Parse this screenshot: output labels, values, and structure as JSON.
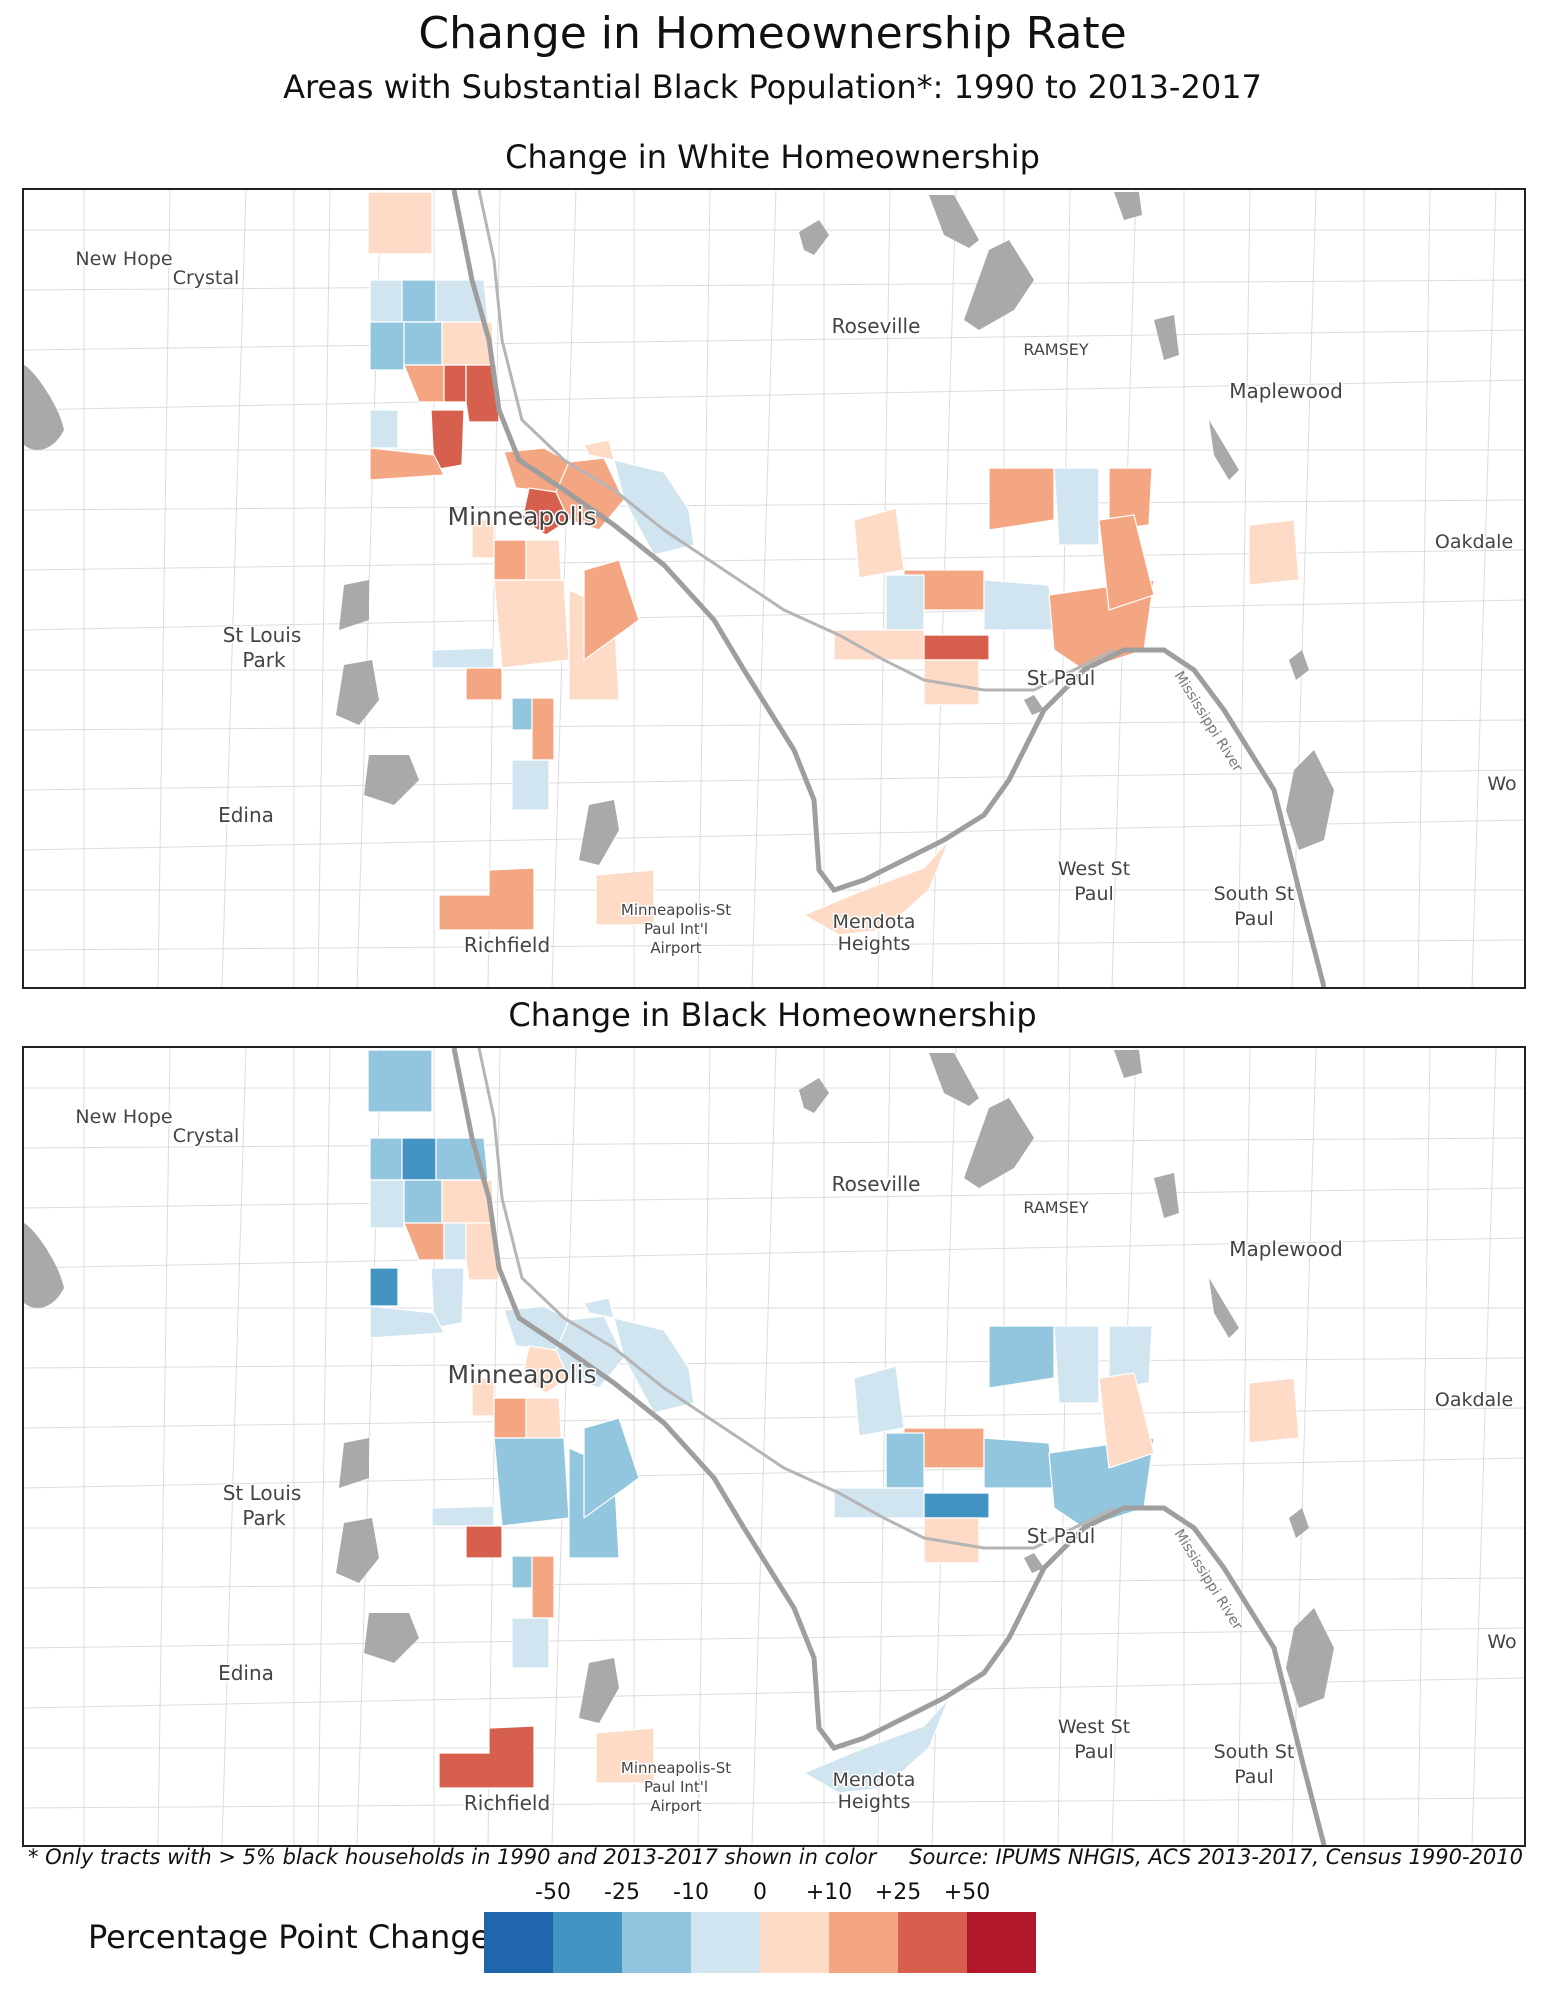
{
  "title": "Change in Homeownership Rate",
  "subtitle": "Areas with Substantial Black Population*: 1990 to 2013-2017",
  "panels": {
    "white": {
      "title": "Change in White Homeownership"
    },
    "black": {
      "title": "Change in Black Homeownership"
    }
  },
  "place_labels": {
    "new_hope": "New Hope",
    "crystal": "Crystal",
    "roseville": "Roseville",
    "ramsey": "RAMSEY",
    "maplewood": "Maplewood",
    "minneapolis": "Minneapolis",
    "oakdale": "Oakdale",
    "st_louis_park_1": "St Louis",
    "st_louis_park_2": "Park",
    "st_paul": "St Paul",
    "mississippi_river": "Mississippi River",
    "edina": "Edina",
    "west_st_paul_1": "West St",
    "west_st_paul_2": "Paul",
    "south_st_paul_1": "South St",
    "south_st_paul_2": "Paul",
    "mendota_1": "Mendota",
    "mendota_2": "Heights",
    "richfield": "Richfield",
    "airport_1": "Minneapolis-St",
    "airport_2": "Paul Int'l",
    "airport_3": "Airport",
    "woodbury_partial": "Wo"
  },
  "footnote": "* Only tracts with > 5% black households in 1990 and 2013-2017 shown in color",
  "source": "Source: IPUMS NHGIS, ACS 2013-2017, Census 1990-2010",
  "legend": {
    "title": "Percentage Point Change",
    "ticks": [
      "-50",
      "-25",
      "-10",
      "0",
      "+10",
      "+25",
      "+50"
    ],
    "colors": [
      "#2166ac",
      "#4393c3",
      "#92c5de",
      "#d1e5f0",
      "#fddbc7",
      "#f4a582",
      "#d6604d",
      "#b2182b"
    ]
  },
  "map_data": {
    "white": [
      {
        "area": "north-top",
        "cls": 4
      },
      {
        "area": "north-1",
        "cls": 3
      },
      {
        "area": "north-2",
        "cls": 2
      },
      {
        "area": "north-3",
        "cls": 3
      },
      {
        "area": "north-4",
        "cls": 2
      },
      {
        "area": "north-5",
        "cls": 2
      },
      {
        "area": "north-6",
        "cls": 4
      },
      {
        "area": "north-7",
        "cls": 5
      },
      {
        "area": "north-8",
        "cls": 6
      },
      {
        "area": "north-9",
        "cls": 6
      },
      {
        "area": "north-10",
        "cls": 3
      },
      {
        "area": "north-11",
        "cls": 6
      },
      {
        "area": "north-12",
        "cls": 5
      },
      {
        "area": "downtown-1",
        "cls": 5
      },
      {
        "area": "downtown-2",
        "cls": 6
      },
      {
        "area": "downtown-3",
        "cls": 5
      },
      {
        "area": "downtown-4",
        "cls": 3
      },
      {
        "area": "downtown-5",
        "cls": 4
      },
      {
        "area": "south-1",
        "cls": 4
      },
      {
        "area": "south-2",
        "cls": 5
      },
      {
        "area": "south-3",
        "cls": 4
      },
      {
        "area": "south-4",
        "cls": 3
      },
      {
        "area": "south-5",
        "cls": 5
      },
      {
        "area": "south-6",
        "cls": 2
      },
      {
        "area": "south-7",
        "cls": 5
      },
      {
        "area": "south-8",
        "cls": 4
      },
      {
        "area": "south-9",
        "cls": 3
      },
      {
        "area": "south-10",
        "cls": 4
      },
      {
        "area": "south-11",
        "cls": 5
      },
      {
        "area": "richfield-1",
        "cls": 5
      },
      {
        "area": "airport-1",
        "cls": 4
      },
      {
        "area": "mendota-1",
        "cls": 4
      },
      {
        "area": "stpaul-1",
        "cls": 4
      },
      {
        "area": "stpaul-2",
        "cls": 5
      },
      {
        "area": "stpaul-3",
        "cls": 3
      },
      {
        "area": "stpaul-4",
        "cls": 5
      },
      {
        "area": "stpaul-5",
        "cls": 4
      },
      {
        "area": "stpaul-6",
        "cls": 3
      },
      {
        "area": "stpaul-7",
        "cls": 6
      },
      {
        "area": "stpaul-8",
        "cls": 5
      },
      {
        "area": "stpaul-9",
        "cls": 4
      },
      {
        "area": "stpaul-10",
        "cls": 5
      },
      {
        "area": "stpaul-11",
        "cls": 3
      },
      {
        "area": "stpaul-12",
        "cls": 5
      },
      {
        "area": "east-1",
        "cls": 4
      }
    ],
    "black": [
      {
        "area": "north-top",
        "cls": 2
      },
      {
        "area": "north-1",
        "cls": 2
      },
      {
        "area": "north-2",
        "cls": 1
      },
      {
        "area": "north-3",
        "cls": 2
      },
      {
        "area": "north-4",
        "cls": 3
      },
      {
        "area": "north-5",
        "cls": 2
      },
      {
        "area": "north-6",
        "cls": 4
      },
      {
        "area": "north-7",
        "cls": 5
      },
      {
        "area": "north-8",
        "cls": 3
      },
      {
        "area": "north-9",
        "cls": 4
      },
      {
        "area": "north-10",
        "cls": 1
      },
      {
        "area": "north-11",
        "cls": 3
      },
      {
        "area": "north-12",
        "cls": 3
      },
      {
        "area": "downtown-1",
        "cls": 3
      },
      {
        "area": "downtown-2",
        "cls": 4
      },
      {
        "area": "downtown-3",
        "cls": 3
      },
      {
        "area": "downtown-4",
        "cls": 3
      },
      {
        "area": "downtown-5",
        "cls": 3
      },
      {
        "area": "south-1",
        "cls": 4
      },
      {
        "area": "south-2",
        "cls": 5
      },
      {
        "area": "south-3",
        "cls": 4
      },
      {
        "area": "south-4",
        "cls": 3
      },
      {
        "area": "south-5",
        "cls": 6
      },
      {
        "area": "south-6",
        "cls": 2
      },
      {
        "area": "south-7",
        "cls": 5
      },
      {
        "area": "south-8",
        "cls": 2
      },
      {
        "area": "south-9",
        "cls": 3
      },
      {
        "area": "south-10",
        "cls": 2
      },
      {
        "area": "south-11",
        "cls": 2
      },
      {
        "area": "richfield-1",
        "cls": 6
      },
      {
        "area": "airport-1",
        "cls": 4
      },
      {
        "area": "mendota-1",
        "cls": 3
      },
      {
        "area": "stpaul-1",
        "cls": 3
      },
      {
        "area": "stpaul-2",
        "cls": 5
      },
      {
        "area": "stpaul-3",
        "cls": 2
      },
      {
        "area": "stpaul-4",
        "cls": 2
      },
      {
        "area": "stpaul-5",
        "cls": 3
      },
      {
        "area": "stpaul-6",
        "cls": 2
      },
      {
        "area": "stpaul-7",
        "cls": 1
      },
      {
        "area": "stpaul-8",
        "cls": 2
      },
      {
        "area": "stpaul-9",
        "cls": 4
      },
      {
        "area": "stpaul-10",
        "cls": 3
      },
      {
        "area": "stpaul-11",
        "cls": 3
      },
      {
        "area": "stpaul-12",
        "cls": 4
      },
      {
        "area": "east-1",
        "cls": 4
      }
    ]
  }
}
